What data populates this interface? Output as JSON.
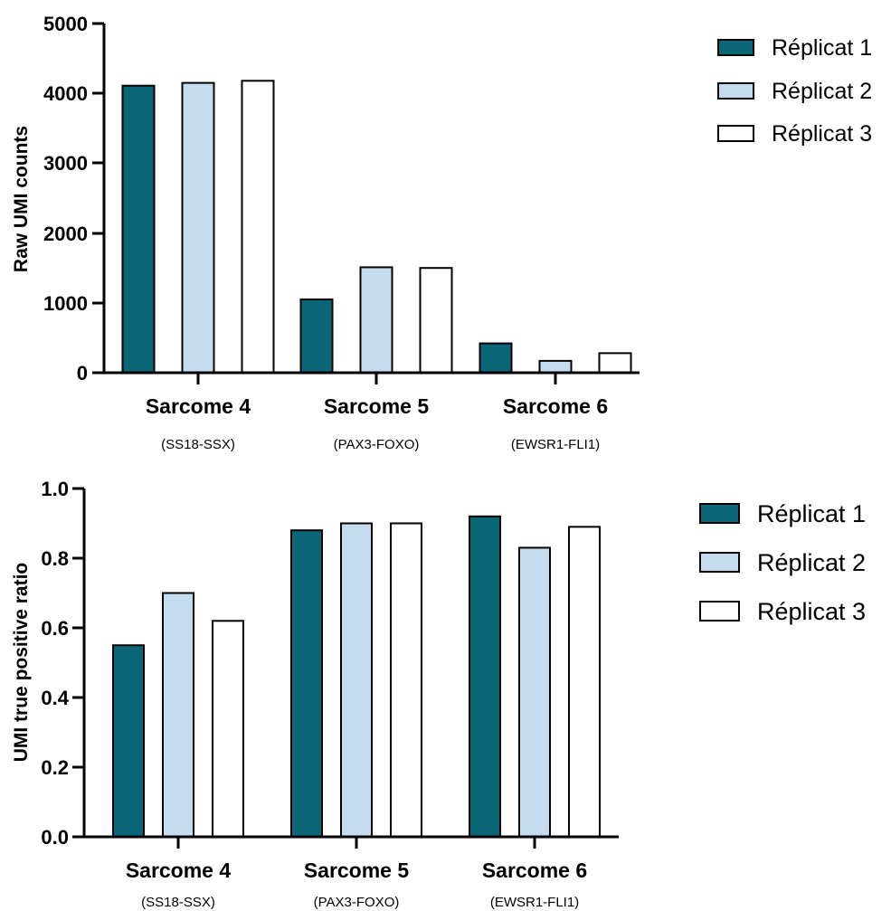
{
  "colors": {
    "replicat1": "#0b6678",
    "replicat2": "#c5dbef",
    "replicat3": "#ffffff",
    "stroke": "#000000"
  },
  "legend": [
    "Réplicat 1",
    "Réplicat 2",
    "Réplicat 3"
  ],
  "categories": [
    {
      "name": "Sarcome 4",
      "fusion": "(SS18-SSX)"
    },
    {
      "name": "Sarcome 5",
      "fusion": "(PAX3-FOXO)"
    },
    {
      "name": "Sarcome 6",
      "fusion": "(EWSR1-FLI1)"
    }
  ],
  "chart_data": [
    {
      "type": "bar",
      "ylabel": "Raw UMI counts",
      "ylim": [
        0,
        5000
      ],
      "yticks": [
        "0",
        "1000",
        "2000",
        "3000",
        "4000",
        "5000"
      ],
      "categories": [
        "Sarcome 4",
        "Sarcome 5",
        "Sarcome 6"
      ],
      "legend_position": "top-right",
      "grid": false,
      "series": [
        {
          "name": "Réplicat 1",
          "values": [
            4110,
            1050,
            420
          ]
        },
        {
          "name": "Réplicat 2",
          "values": [
            4150,
            1510,
            170
          ]
        },
        {
          "name": "Réplicat 3",
          "values": [
            4180,
            1500,
            280
          ]
        }
      ]
    },
    {
      "type": "bar",
      "ylabel": "UMI true positive ratio",
      "ylim": [
        0,
        1.0
      ],
      "yticks": [
        "0.0",
        "0.2",
        "0.4",
        "0.6",
        "0.8",
        "1.0"
      ],
      "categories": [
        "Sarcome 4",
        "Sarcome 5",
        "Sarcome 6"
      ],
      "legend_position": "top-right",
      "grid": false,
      "series": [
        {
          "name": "Réplicat 1",
          "values": [
            0.55,
            0.88,
            0.92
          ]
        },
        {
          "name": "Réplicat 2",
          "values": [
            0.7,
            0.9,
            0.83
          ]
        },
        {
          "name": "Réplicat 3",
          "values": [
            0.62,
            0.9,
            0.89
          ]
        }
      ]
    }
  ]
}
